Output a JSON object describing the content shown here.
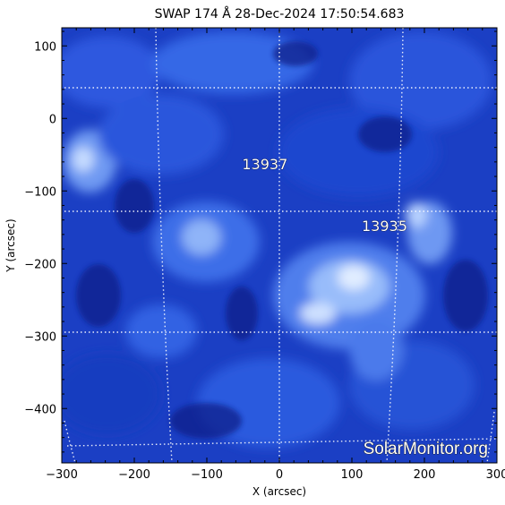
{
  "title": "SWAP 174 Å 28-Dec-2024 17:50:54.683",
  "x_axis": {
    "label": "X (arcsec)",
    "min": -300,
    "max": 300,
    "ticks": [
      "−300",
      "−200",
      "−100",
      "0",
      "100",
      "200",
      "300"
    ]
  },
  "y_axis": {
    "label": "Y (arcsec)",
    "min": -475,
    "max": 125,
    "ticks": [
      "100",
      "0",
      "−100",
      "−200",
      "−300",
      "−400"
    ]
  },
  "regions": [
    {
      "label": "13937",
      "x": -20,
      "y": -70
    },
    {
      "label": "13935",
      "x": 145,
      "y": -155
    }
  ],
  "watermark": "SolarMonitor.org",
  "colors": {
    "disk_dark": "#0a1f8c",
    "disk_mid": "#2f5fe0",
    "disk_bright": "#bcd8ff",
    "grid": "#ffffff"
  }
}
